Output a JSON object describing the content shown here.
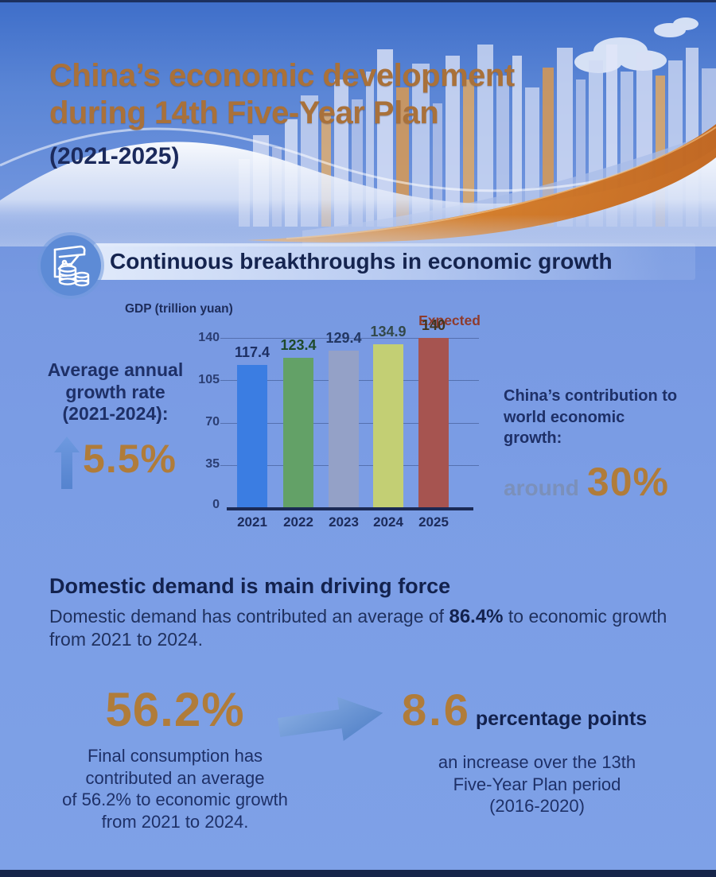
{
  "header": {
    "title_line1": "China’s economic development",
    "title_line2": "during 14th Five-Year Plan",
    "years": "(2021-2025)"
  },
  "section": {
    "heading": "Continuous breakthroughs in economic growth"
  },
  "chart_data": {
    "type": "bar",
    "title": "GDP (trillion yuan)",
    "categories": [
      "2021",
      "2022",
      "2023",
      "2024",
      "2025"
    ],
    "values": [
      117.4,
      123.4,
      129.4,
      134.9,
      140
    ],
    "value_labels": [
      "117.4",
      "123.4",
      "129.4",
      "134.9",
      "140"
    ],
    "annotation": "Expected",
    "annotation_applies_to": "2025",
    "ylim": [
      0,
      140
    ],
    "yticks": [
      0,
      35,
      70,
      105,
      140
    ],
    "ytick_labels_top_down": [
      "140",
      "105",
      "70",
      "35",
      "0"
    ],
    "grid": true,
    "legend": "none",
    "bar_colors": [
      "#3b7de2",
      "#63a167",
      "#94a1c7",
      "#c3cf74",
      "#a65450"
    ],
    "value_label_colors": [
      "#1d2f63",
      "#1e4a2b",
      "#233763",
      "#33494a",
      "#41351f"
    ]
  },
  "left_stat": {
    "label_lines": [
      "Average annual",
      "growth rate",
      "(2021-2024):"
    ],
    "value": "5.5%"
  },
  "right_stat": {
    "label_lines": [
      "China’s contribution to",
      "world economic",
      "growth:"
    ],
    "prefix": "around",
    "value": "30%"
  },
  "domestic": {
    "heading": "Domestic demand is main driving force",
    "body_pre": "Domestic demand has contributed an average of ",
    "body_bold": "86.4%",
    "body_post": " to economic growth from 2021 to 2024."
  },
  "bottom_left": {
    "value": "56.2%",
    "caption_lines": [
      "Final consumption has",
      "contributed an average",
      "of 56.2% to economic growth",
      "from 2021 to 2024."
    ]
  },
  "bottom_right": {
    "value": "8.6",
    "unit": "percentage points",
    "caption_lines": [
      "an increase over the 13th",
      "Five-Year Plan period",
      "(2016-2020)"
    ]
  },
  "icons": {
    "economy-icon": "document-with-line-chart-and-coin-stacks",
    "up-arrow-icon": "solid upward arrow",
    "right-arrow-icon": "solid rightward arrow",
    "cloud-icon": "cloud shapes",
    "cityscape": "skyline silhouette"
  },
  "colors": {
    "accent_orange": "#b07c3a",
    "title_brown": "#a9713a",
    "navy_text": "#1b2a5c",
    "expected_red": "#8e3b2d",
    "around_blue": "#7b90ba",
    "background_blue": "#7b9de5",
    "ribbon_orange": "#d57a22"
  }
}
